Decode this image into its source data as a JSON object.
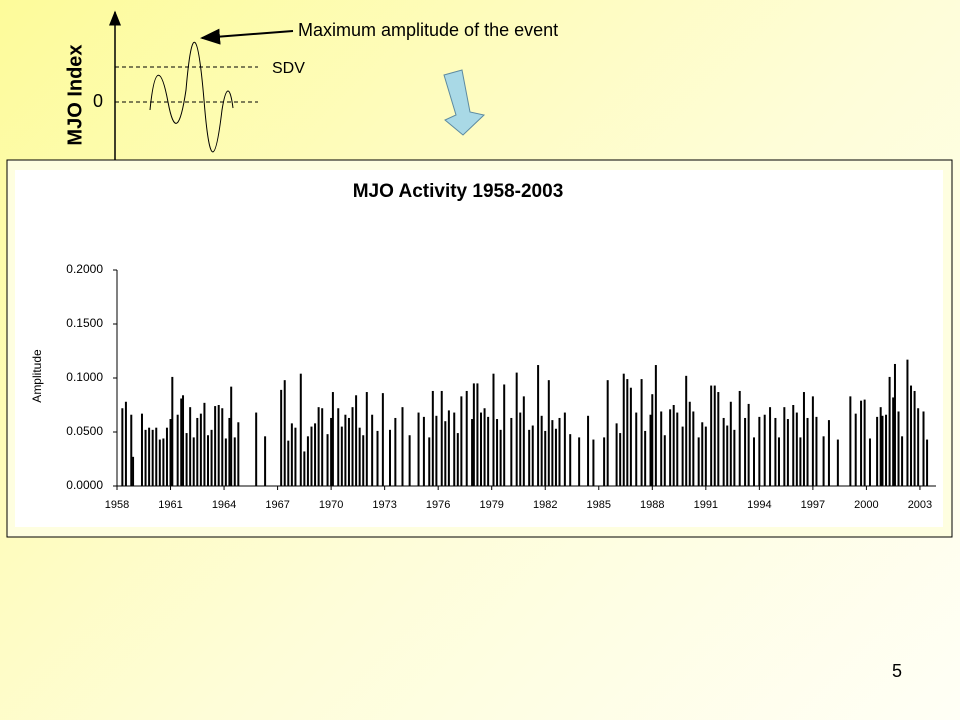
{
  "diagram": {
    "y_axis_label": "MJO Index",
    "zero_label": "0",
    "sdv_label": "SDV",
    "annotation": "Maximum amplitude of the event"
  },
  "page_number": "5",
  "chart_data": {
    "type": "bar",
    "title": "MJO Activity  1958-2003",
    "y_label": "Amplitude",
    "color": "#000000",
    "xlim": [
      1958,
      2003.9
    ],
    "ylim": [
      0,
      0.2
    ],
    "xticks": [
      1958,
      1961,
      1964,
      1967,
      1970,
      1973,
      1976,
      1979,
      1982,
      1985,
      1988,
      1991,
      1994,
      1997,
      2000,
      2003
    ],
    "yticks": [
      {
        "value": 0,
        "label": "0.0000"
      },
      {
        "value": 0.05,
        "label": "0.0500"
      },
      {
        "value": 0.1,
        "label": "0.1000"
      },
      {
        "value": 0.15,
        "label": "0.1500"
      },
      {
        "value": 0.2,
        "label": "0.2000"
      }
    ],
    "x": [
      1958.3,
      1958.5,
      1958.8,
      1958.9,
      1959.4,
      1959.6,
      1959.8,
      1960.0,
      1960.2,
      1960.4,
      1960.6,
      1960.8,
      1961.0,
      1961.1,
      1961.4,
      1961.6,
      1961.7,
      1961.9,
      1962.1,
      1962.3,
      1962.5,
      1962.7,
      1962.9,
      1963.1,
      1963.3,
      1963.5,
      1963.7,
      1963.9,
      1964.1,
      1964.3,
      1964.4,
      1964.6,
      1964.8,
      1965.8,
      1966.3,
      1967.2,
      1967.4,
      1967.6,
      1967.8,
      1968.0,
      1968.3,
      1968.5,
      1968.7,
      1968.9,
      1969.1,
      1969.3,
      1969.5,
      1969.8,
      1970.0,
      1970.1,
      1970.4,
      1970.6,
      1970.8,
      1971.0,
      1971.2,
      1971.4,
      1971.6,
      1971.8,
      1972.0,
      1972.3,
      1972.6,
      1972.9,
      1973.3,
      1973.6,
      1974.0,
      1974.4,
      1974.9,
      1975.2,
      1975.5,
      1975.7,
      1975.9,
      1976.2,
      1976.4,
      1976.6,
      1976.9,
      1977.1,
      1977.3,
      1977.6,
      1977.9,
      1978.0,
      1978.2,
      1978.4,
      1978.6,
      1978.8,
      1979.1,
      1979.3,
      1979.5,
      1979.7,
      1980.1,
      1980.4,
      1980.6,
      1980.8,
      1981.1,
      1981.3,
      1981.6,
      1981.8,
      1982.0,
      1982.2,
      1982.4,
      1982.6,
      1982.8,
      1983.1,
      1983.4,
      1983.9,
      1984.4,
      1984.7,
      1985.3,
      1985.5,
      1986.0,
      1986.2,
      1986.4,
      1986.6,
      1986.8,
      1987.1,
      1987.4,
      1987.6,
      1987.9,
      1988.0,
      1988.2,
      1988.5,
      1988.7,
      1989.0,
      1989.2,
      1989.4,
      1989.7,
      1989.9,
      1990.1,
      1990.3,
      1990.6,
      1990.8,
      1991.0,
      1991.3,
      1991.5,
      1991.7,
      1992.0,
      1992.2,
      1992.4,
      1992.6,
      1992.9,
      1993.2,
      1993.4,
      1993.7,
      1994.0,
      1994.3,
      1994.6,
      1994.9,
      1995.1,
      1995.4,
      1995.6,
      1995.9,
      1996.1,
      1996.3,
      1996.5,
      1996.7,
      1997.0,
      1997.2,
      1997.6,
      1997.9,
      1998.4,
      1999.1,
      1999.4,
      1999.7,
      1999.9,
      2000.2,
      2000.6,
      2000.8,
      2000.9,
      2001.1,
      2001.3,
      2001.5,
      2001.6,
      2001.8,
      2002.0,
      2002.3,
      2002.5,
      2002.7,
      2002.9,
      2003.2,
      2003.4
    ],
    "values": [
      0.072,
      0.078,
      0.066,
      0.027,
      0.067,
      0.052,
      0.054,
      0.052,
      0.054,
      0.043,
      0.044,
      0.054,
      0.062,
      0.101,
      0.066,
      0.081,
      0.084,
      0.049,
      0.073,
      0.045,
      0.063,
      0.067,
      0.077,
      0.047,
      0.052,
      0.074,
      0.075,
      0.072,
      0.044,
      0.063,
      0.092,
      0.045,
      0.059,
      0.068,
      0.046,
      0.089,
      0.098,
      0.042,
      0.058,
      0.054,
      0.104,
      0.032,
      0.046,
      0.055,
      0.058,
      0.073,
      0.072,
      0.048,
      0.063,
      0.087,
      0.072,
      0.055,
      0.066,
      0.063,
      0.073,
      0.084,
      0.054,
      0.047,
      0.087,
      0.066,
      0.051,
      0.086,
      0.052,
      0.063,
      0.073,
      0.047,
      0.068,
      0.064,
      0.045,
      0.088,
      0.065,
      0.088,
      0.06,
      0.07,
      0.068,
      0.049,
      0.083,
      0.088,
      0.062,
      0.095,
      0.095,
      0.068,
      0.072,
      0.064,
      0.104,
      0.062,
      0.052,
      0.094,
      0.063,
      0.105,
      0.068,
      0.083,
      0.052,
      0.056,
      0.112,
      0.065,
      0.051,
      0.098,
      0.061,
      0.053,
      0.063,
      0.068,
      0.048,
      0.045,
      0.065,
      0.043,
      0.045,
      0.098,
      0.058,
      0.049,
      0.104,
      0.099,
      0.091,
      0.068,
      0.099,
      0.051,
      0.066,
      0.085,
      0.112,
      0.069,
      0.047,
      0.071,
      0.075,
      0.068,
      0.055,
      0.102,
      0.078,
      0.069,
      0.045,
      0.059,
      0.055,
      0.093,
      0.093,
      0.087,
      0.063,
      0.056,
      0.078,
      0.052,
      0.088,
      0.063,
      0.076,
      0.045,
      0.064,
      0.066,
      0.073,
      0.063,
      0.045,
      0.073,
      0.062,
      0.075,
      0.068,
      0.045,
      0.087,
      0.063,
      0.083,
      0.064,
      0.046,
      0.061,
      0.043,
      0.083,
      0.067,
      0.079,
      0.08,
      0.044,
      0.064,
      0.073,
      0.065,
      0.066,
      0.101,
      0.082,
      0.113,
      0.069,
      0.046,
      0.117,
      0.093,
      0.088,
      0.072,
      0.069,
      0.043
    ]
  }
}
